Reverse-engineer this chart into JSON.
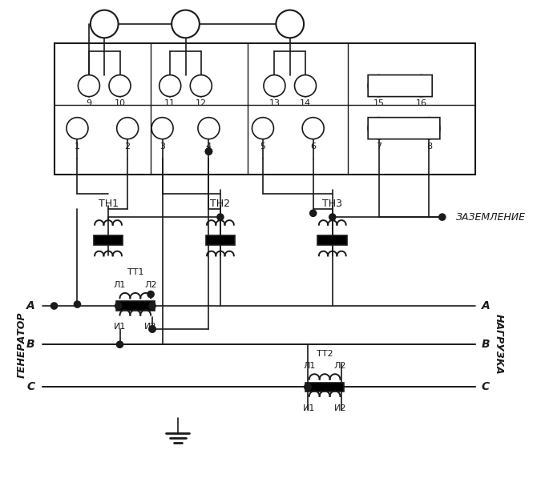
{
  "bg_color": "#ffffff",
  "line_color": "#1a1a1a",
  "figsize": [
    6.7,
    6.02
  ],
  "dpi": 100,
  "title": "",
  "labels": {
    "generator": "ГЕНЕРАТОР",
    "load": "НАГРУЗКА",
    "ground_label": "ЗАЗЕМЛЕНИЕ",
    "A_left": "A",
    "B_left": "B",
    "C_left": "C",
    "A_right": "A",
    "B_right": "B",
    "C_right": "C",
    "TH1": "ТН1",
    "TH2": "ТН2",
    "TH3": "ТН3",
    "TT1": "ТТ1",
    "TT2": "ТТ2",
    "L1_1": "Л1",
    "L2_1": "Л2",
    "I1_1": "И1",
    "I2_1": "И2",
    "L1_2": "Л1",
    "L2_2": "Л2",
    "I1_2": "И1",
    "I2_2": "И2",
    "terminals": [
      "1",
      "2",
      "3",
      "4",
      "5",
      "6",
      "7",
      "8",
      "9",
      "10",
      "11",
      "12",
      "13",
      "14",
      "15",
      "16"
    ]
  }
}
